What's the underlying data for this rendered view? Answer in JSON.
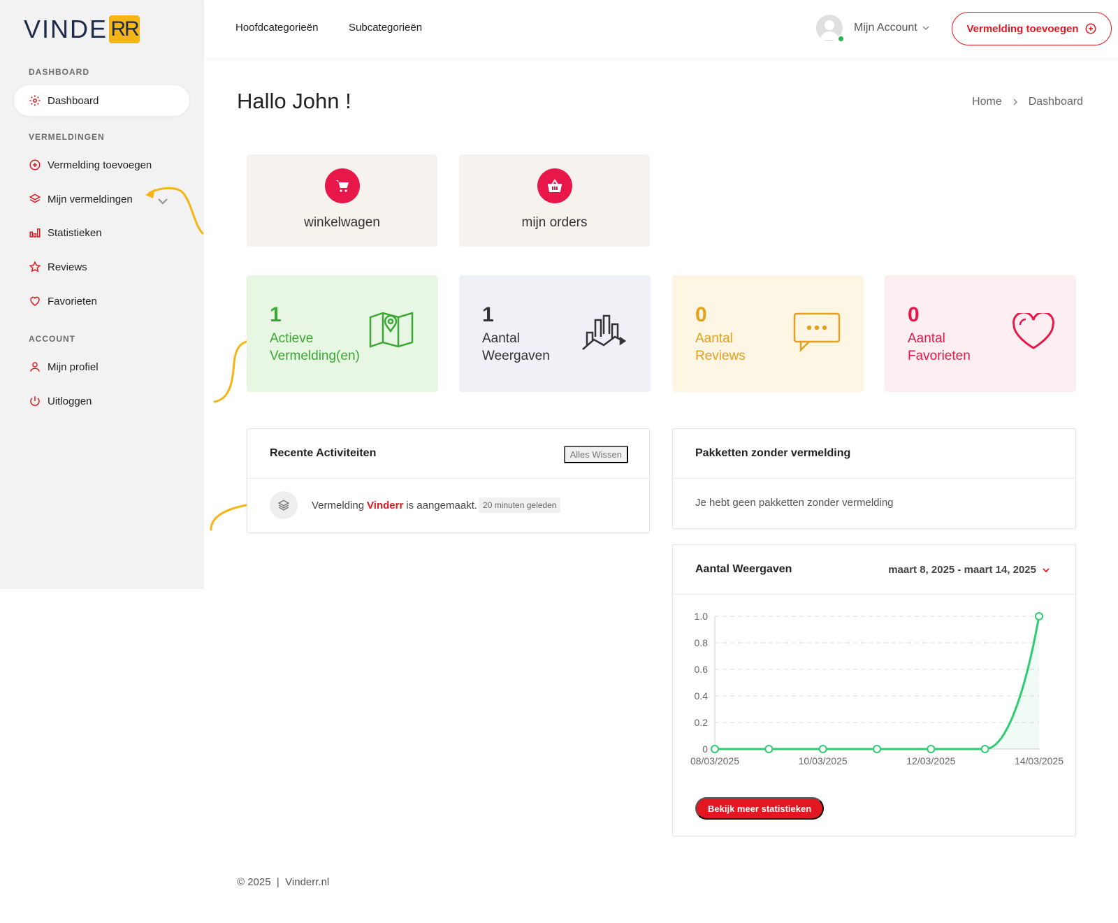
{
  "brand": {
    "logo_text": "VINDE",
    "logo_suffix": "RR"
  },
  "sidebar": {
    "sections": {
      "dashboard": "DASHBOARD",
      "listings": "VERMELDINGEN",
      "account": "ACCOUNT"
    },
    "items": [
      {
        "label": "Dashboard",
        "icon": "gear-icon"
      },
      {
        "label": "Vermelding toevoegen",
        "icon": "plus-circle-icon"
      },
      {
        "label": "Mijn vermeldingen",
        "icon": "layers-icon"
      },
      {
        "label": "Statistieken",
        "icon": "bar-chart-icon"
      },
      {
        "label": "Reviews",
        "icon": "star-icon"
      },
      {
        "label": "Favorieten",
        "icon": "heart-icon"
      },
      {
        "label": "Mijn profiel",
        "icon": "user-icon"
      },
      {
        "label": "Uitloggen",
        "icon": "power-icon"
      }
    ]
  },
  "topbar": {
    "nav": [
      "Hoofdcategorieën",
      "Subcategorieën"
    ],
    "account_label": "Mijn Account",
    "add_button": "Vermelding toevoegen"
  },
  "page": {
    "title": "Hallo John !",
    "breadcrumb": [
      "Home",
      "Dashboard"
    ]
  },
  "tiles": [
    {
      "label": "winkelwagen",
      "icon": "cart-icon"
    },
    {
      "label": "mijn orders",
      "icon": "basket-icon"
    }
  ],
  "stats": [
    {
      "number": "1",
      "label1": "Actieve",
      "label2": "Vermelding(en)",
      "color": "#3aa832",
      "bg": "#e8f7e4",
      "icon": "map-icon"
    },
    {
      "number": "1",
      "label1": "Aantal",
      "label2": "Weergaven",
      "color": "#333333",
      "bg": "#f0f1f6",
      "icon": "city-chart-icon"
    },
    {
      "number": "0",
      "label1": "Aantal",
      "label2": "Reviews",
      "color": "#e3a21a",
      "bg": "#fdf6e4",
      "icon": "chat-bubble-icon"
    },
    {
      "number": "0",
      "label1": "Aantal",
      "label2": "Favorieten",
      "color": "#e8174a",
      "bg": "#fdeff1",
      "icon": "heart-outline-icon"
    }
  ],
  "activity": {
    "title": "Recente Activiteiten",
    "clear_label": "Alles Wissen",
    "item": {
      "prefix": "Vermelding",
      "name": "Vinderr",
      "suffix": "is aangemaakt.",
      "time": "20 minuten geleden"
    }
  },
  "packages": {
    "title": "Pakketten zonder vermelding",
    "empty_text": "Je hebt geen pakketten zonder vermelding"
  },
  "views_panel": {
    "title": "Aantal Weergaven",
    "date_range": "maart 8, 2025 - maart 14, 2025",
    "button": "Bekijk meer statistieken"
  },
  "chart_data": {
    "type": "line",
    "title": "Aantal Weergaven",
    "x": [
      "08/03/2025",
      "09/03/2025",
      "10/03/2025",
      "11/03/2025",
      "12/03/2025",
      "13/03/2025",
      "14/03/2025"
    ],
    "x_tick_labels": [
      "08/03/2025",
      "10/03/2025",
      "12/03/2025",
      "14/03/2025"
    ],
    "series": [
      {
        "name": "Weergaven",
        "values": [
          0,
          0,
          0,
          0,
          0,
          0,
          1
        ]
      }
    ],
    "y_ticks": [
      "0",
      "0.2",
      "0.4",
      "0.6",
      "0.8",
      "1.0"
    ],
    "ylim": [
      0,
      1
    ],
    "grid": true,
    "color": "#2ecc71"
  },
  "footer": {
    "text": "© 2025  |  Vinderr.nl"
  }
}
